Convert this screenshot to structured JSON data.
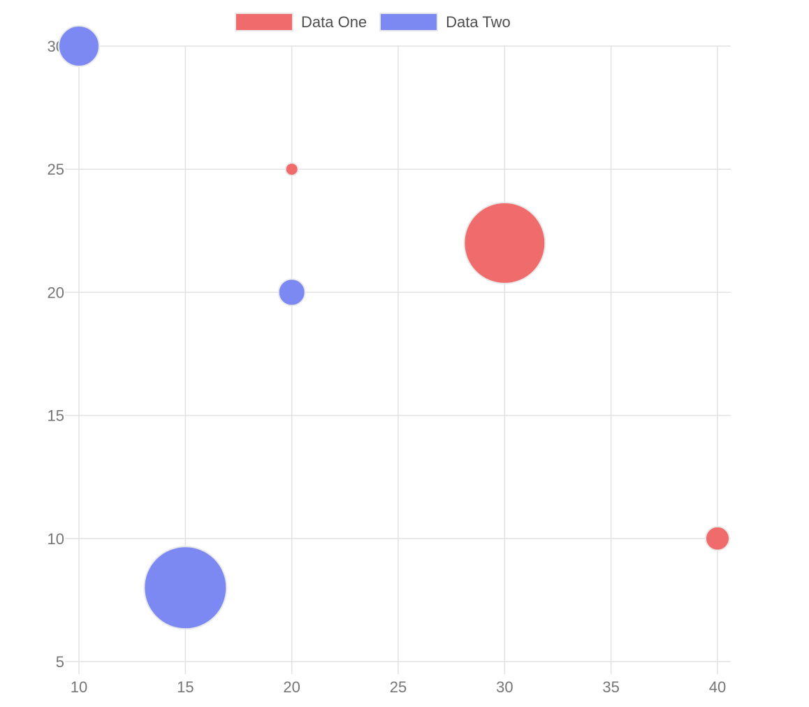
{
  "legend": {
    "items": [
      {
        "label": "Data One",
        "color": "#f06c6c"
      },
      {
        "label": "Data Two",
        "color": "#7d89f2"
      }
    ]
  },
  "chart_data": {
    "type": "bubble",
    "title": "",
    "xlabel": "",
    "ylabel": "",
    "x_axis": {
      "min": 10,
      "max": 40,
      "ticks": [
        10,
        15,
        20,
        25,
        30,
        35,
        40
      ]
    },
    "y_axis": {
      "min": 5,
      "max": 30,
      "ticks": [
        5,
        10,
        15,
        20,
        25,
        30
      ]
    },
    "grid": true,
    "legend_position": "top-center",
    "series": [
      {
        "name": "Data One",
        "color": "#f06c6c",
        "points": [
          {
            "x": 20,
            "y": 25,
            "r": 9
          },
          {
            "x": 30,
            "y": 22,
            "r": 58
          },
          {
            "x": 40,
            "y": 10,
            "r": 17
          }
        ]
      },
      {
        "name": "Data Two",
        "color": "#7d89f2",
        "points": [
          {
            "x": 10,
            "y": 30,
            "r": 29
          },
          {
            "x": 20,
            "y": 20,
            "r": 19
          },
          {
            "x": 15,
            "y": 8,
            "r": 59
          }
        ]
      }
    ]
  },
  "style": {
    "grid_color": "#e2e2e2",
    "tick_text_color": "#757575",
    "bubble_border_color": "#e9e9e9",
    "background": "#ffffff"
  }
}
